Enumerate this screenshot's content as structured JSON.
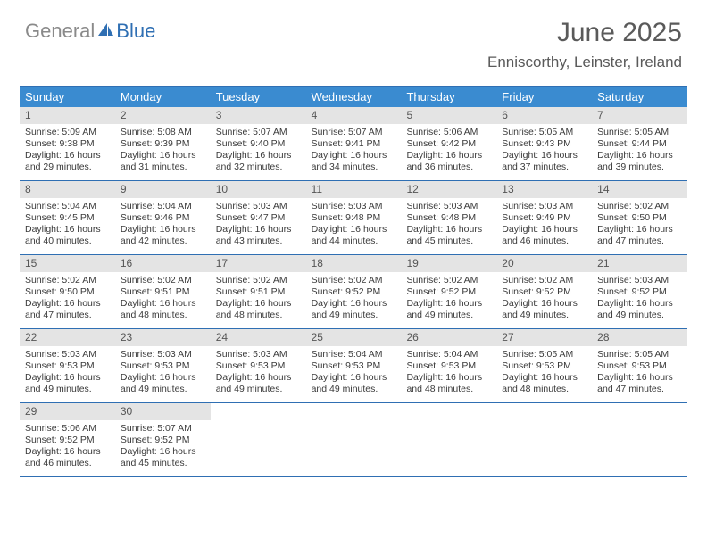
{
  "brand": {
    "gray": "General",
    "blue": "Blue"
  },
  "title": "June 2025",
  "subtitle": "Enniscorthy, Leinster, Ireland",
  "colors": {
    "header_bar": "#3a8bd0",
    "divider": "#2f6fb3",
    "daynum_bg": "#e4e4e4",
    "text": "#3a3a3a",
    "title_text": "#5a5a5a",
    "logo_gray": "#8a8a8a",
    "logo_blue": "#2f6fb3",
    "white": "#ffffff"
  },
  "dow": [
    "Sunday",
    "Monday",
    "Tuesday",
    "Wednesday",
    "Thursday",
    "Friday",
    "Saturday"
  ],
  "weeks": [
    [
      {
        "n": "1",
        "sr": "Sunrise: 5:09 AM",
        "ss": "Sunset: 9:38 PM",
        "d1": "Daylight: 16 hours",
        "d2": "and 29 minutes."
      },
      {
        "n": "2",
        "sr": "Sunrise: 5:08 AM",
        "ss": "Sunset: 9:39 PM",
        "d1": "Daylight: 16 hours",
        "d2": "and 31 minutes."
      },
      {
        "n": "3",
        "sr": "Sunrise: 5:07 AM",
        "ss": "Sunset: 9:40 PM",
        "d1": "Daylight: 16 hours",
        "d2": "and 32 minutes."
      },
      {
        "n": "4",
        "sr": "Sunrise: 5:07 AM",
        "ss": "Sunset: 9:41 PM",
        "d1": "Daylight: 16 hours",
        "d2": "and 34 minutes."
      },
      {
        "n": "5",
        "sr": "Sunrise: 5:06 AM",
        "ss": "Sunset: 9:42 PM",
        "d1": "Daylight: 16 hours",
        "d2": "and 36 minutes."
      },
      {
        "n": "6",
        "sr": "Sunrise: 5:05 AM",
        "ss": "Sunset: 9:43 PM",
        "d1": "Daylight: 16 hours",
        "d2": "and 37 minutes."
      },
      {
        "n": "7",
        "sr": "Sunrise: 5:05 AM",
        "ss": "Sunset: 9:44 PM",
        "d1": "Daylight: 16 hours",
        "d2": "and 39 minutes."
      }
    ],
    [
      {
        "n": "8",
        "sr": "Sunrise: 5:04 AM",
        "ss": "Sunset: 9:45 PM",
        "d1": "Daylight: 16 hours",
        "d2": "and 40 minutes."
      },
      {
        "n": "9",
        "sr": "Sunrise: 5:04 AM",
        "ss": "Sunset: 9:46 PM",
        "d1": "Daylight: 16 hours",
        "d2": "and 42 minutes."
      },
      {
        "n": "10",
        "sr": "Sunrise: 5:03 AM",
        "ss": "Sunset: 9:47 PM",
        "d1": "Daylight: 16 hours",
        "d2": "and 43 minutes."
      },
      {
        "n": "11",
        "sr": "Sunrise: 5:03 AM",
        "ss": "Sunset: 9:48 PM",
        "d1": "Daylight: 16 hours",
        "d2": "and 44 minutes."
      },
      {
        "n": "12",
        "sr": "Sunrise: 5:03 AM",
        "ss": "Sunset: 9:48 PM",
        "d1": "Daylight: 16 hours",
        "d2": "and 45 minutes."
      },
      {
        "n": "13",
        "sr": "Sunrise: 5:03 AM",
        "ss": "Sunset: 9:49 PM",
        "d1": "Daylight: 16 hours",
        "d2": "and 46 minutes."
      },
      {
        "n": "14",
        "sr": "Sunrise: 5:02 AM",
        "ss": "Sunset: 9:50 PM",
        "d1": "Daylight: 16 hours",
        "d2": "and 47 minutes."
      }
    ],
    [
      {
        "n": "15",
        "sr": "Sunrise: 5:02 AM",
        "ss": "Sunset: 9:50 PM",
        "d1": "Daylight: 16 hours",
        "d2": "and 47 minutes."
      },
      {
        "n": "16",
        "sr": "Sunrise: 5:02 AM",
        "ss": "Sunset: 9:51 PM",
        "d1": "Daylight: 16 hours",
        "d2": "and 48 minutes."
      },
      {
        "n": "17",
        "sr": "Sunrise: 5:02 AM",
        "ss": "Sunset: 9:51 PM",
        "d1": "Daylight: 16 hours",
        "d2": "and 48 minutes."
      },
      {
        "n": "18",
        "sr": "Sunrise: 5:02 AM",
        "ss": "Sunset: 9:52 PM",
        "d1": "Daylight: 16 hours",
        "d2": "and 49 minutes."
      },
      {
        "n": "19",
        "sr": "Sunrise: 5:02 AM",
        "ss": "Sunset: 9:52 PM",
        "d1": "Daylight: 16 hours",
        "d2": "and 49 minutes."
      },
      {
        "n": "20",
        "sr": "Sunrise: 5:02 AM",
        "ss": "Sunset: 9:52 PM",
        "d1": "Daylight: 16 hours",
        "d2": "and 49 minutes."
      },
      {
        "n": "21",
        "sr": "Sunrise: 5:03 AM",
        "ss": "Sunset: 9:52 PM",
        "d1": "Daylight: 16 hours",
        "d2": "and 49 minutes."
      }
    ],
    [
      {
        "n": "22",
        "sr": "Sunrise: 5:03 AM",
        "ss": "Sunset: 9:53 PM",
        "d1": "Daylight: 16 hours",
        "d2": "and 49 minutes."
      },
      {
        "n": "23",
        "sr": "Sunrise: 5:03 AM",
        "ss": "Sunset: 9:53 PM",
        "d1": "Daylight: 16 hours",
        "d2": "and 49 minutes."
      },
      {
        "n": "24",
        "sr": "Sunrise: 5:03 AM",
        "ss": "Sunset: 9:53 PM",
        "d1": "Daylight: 16 hours",
        "d2": "and 49 minutes."
      },
      {
        "n": "25",
        "sr": "Sunrise: 5:04 AM",
        "ss": "Sunset: 9:53 PM",
        "d1": "Daylight: 16 hours",
        "d2": "and 49 minutes."
      },
      {
        "n": "26",
        "sr": "Sunrise: 5:04 AM",
        "ss": "Sunset: 9:53 PM",
        "d1": "Daylight: 16 hours",
        "d2": "and 48 minutes."
      },
      {
        "n": "27",
        "sr": "Sunrise: 5:05 AM",
        "ss": "Sunset: 9:53 PM",
        "d1": "Daylight: 16 hours",
        "d2": "and 48 minutes."
      },
      {
        "n": "28",
        "sr": "Sunrise: 5:05 AM",
        "ss": "Sunset: 9:53 PM",
        "d1": "Daylight: 16 hours",
        "d2": "and 47 minutes."
      }
    ],
    [
      {
        "n": "29",
        "sr": "Sunrise: 5:06 AM",
        "ss": "Sunset: 9:52 PM",
        "d1": "Daylight: 16 hours",
        "d2": "and 46 minutes."
      },
      {
        "n": "30",
        "sr": "Sunrise: 5:07 AM",
        "ss": "Sunset: 9:52 PM",
        "d1": "Daylight: 16 hours",
        "d2": "and 45 minutes."
      },
      null,
      null,
      null,
      null,
      null
    ]
  ]
}
